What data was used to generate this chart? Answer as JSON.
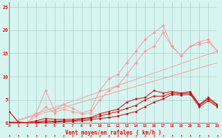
{
  "x": [
    0,
    1,
    2,
    3,
    4,
    5,
    6,
    7,
    8,
    9,
    10,
    11,
    12,
    13,
    14,
    15,
    16,
    17,
    18,
    19,
    20,
    21,
    22,
    23
  ],
  "line_pink1": [
    2.5,
    0.3,
    0.1,
    2.2,
    7.0,
    2.8,
    4.0,
    3.2,
    2.2,
    2.8,
    7.0,
    9.5,
    10.5,
    13.0,
    15.5,
    18.0,
    19.5,
    21.0,
    16.5,
    14.5,
    16.5,
    17.5,
    18.0,
    15.5
  ],
  "line_pink2": [
    2.5,
    0.2,
    0.1,
    1.5,
    3.5,
    2.2,
    3.0,
    2.5,
    2.0,
    2.2,
    5.0,
    7.0,
    8.0,
    10.5,
    13.0,
    15.5,
    16.5,
    19.5,
    16.5,
    14.5,
    16.5,
    17.0,
    17.5,
    15.5
  ],
  "ref_line1_end": 15.5,
  "ref_line2_end": 13.0,
  "line_dark1": [
    2.5,
    0.2,
    0.1,
    0.5,
    1.0,
    0.8,
    0.8,
    0.8,
    1.0,
    1.2,
    2.0,
    2.5,
    3.0,
    4.5,
    5.2,
    5.5,
    7.0,
    6.5,
    6.8,
    6.5,
    6.8,
    4.0,
    5.5,
    4.0
  ],
  "line_dark2": [
    0.2,
    0.1,
    0.0,
    0.2,
    0.5,
    0.4,
    0.5,
    0.5,
    0.8,
    1.0,
    1.5,
    2.0,
    2.5,
    3.2,
    3.8,
    5.0,
    5.8,
    5.8,
    6.5,
    6.3,
    6.5,
    3.8,
    5.2,
    3.8
  ],
  "line_dark3": [
    0.1,
    0.0,
    0.0,
    0.1,
    0.2,
    0.2,
    0.3,
    0.4,
    0.5,
    0.7,
    1.0,
    1.2,
    1.5,
    2.0,
    2.5,
    3.5,
    4.5,
    5.2,
    6.2,
    6.0,
    6.2,
    3.5,
    4.8,
    3.5
  ],
  "background_color": "#d6f5f0",
  "grid_color": "#aacccc",
  "line_color_dark": "#cc0000",
  "line_color_light": "#ff9999",
  "xlabel": "Vent moyen/en rafales ( km/h )",
  "ylim": [
    0,
    26
  ],
  "xlim": [
    0,
    23
  ],
  "yticks": [
    0,
    5,
    10,
    15,
    20,
    25
  ],
  "xticks": [
    0,
    1,
    2,
    3,
    4,
    5,
    6,
    7,
    8,
    9,
    10,
    11,
    12,
    13,
    14,
    15,
    16,
    17,
    18,
    19,
    20,
    21,
    22,
    23
  ]
}
